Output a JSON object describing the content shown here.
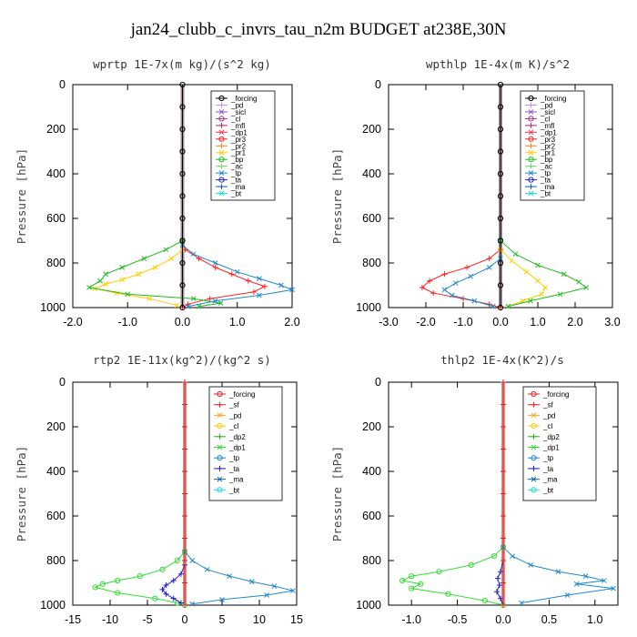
{
  "page_title": "jan24_clubb_c_invrs_tau_n2m  BUDGET at238E,30N",
  "chart_data": [
    {
      "type": "line",
      "title": "wprtp  1E-7x(m kg)/(s^2 kg)",
      "ylabel": "Pressure [hPa]",
      "xlim": [
        -2.0,
        2.0
      ],
      "ylim": [
        1000,
        0
      ],
      "xticks": [
        "-2.0",
        "-1.0",
        "0.0",
        "1.0",
        "2.0"
      ],
      "yticks": [
        "0",
        "200",
        "400",
        "600",
        "800",
        "1000"
      ],
      "grid": false,
      "legend_position": "top-right",
      "legend": [
        "_forcing",
        "_pd",
        "_sicl",
        "_cl",
        "_mfl",
        "_dp1",
        "_pr3",
        "_pr2",
        "_pr1",
        "_bp",
        "_ac",
        "_tp",
        "_ta",
        "_ma",
        "_bt"
      ],
      "series": [
        {
          "name": "_pr3",
          "color": "#ff2222",
          "marker": "plus",
          "x": [
            0,
            0.05,
            0.3,
            0.6,
            0.9,
            1.2,
            1.5,
            1.3,
            0.5,
            0.1,
            0
          ],
          "y": [
            700,
            740,
            780,
            820,
            850,
            880,
            905,
            930,
            960,
            985,
            1000
          ]
        },
        {
          "name": "_pr1",
          "color": "#ffcc00",
          "marker": "x",
          "x": [
            0,
            -0.2,
            -0.5,
            -0.8,
            -1.1,
            -1.4,
            -1.6,
            -1.2,
            -0.6,
            -0.1
          ],
          "y": [
            740,
            780,
            820,
            850,
            875,
            895,
            915,
            935,
            960,
            990
          ]
        },
        {
          "name": "_bp",
          "color": "#22bb22",
          "marker": "x",
          "x": [
            0,
            -0.3,
            -0.7,
            -1.1,
            -1.4,
            -1.5,
            -1.7,
            -1.0,
            0.2,
            0.7,
            0.3
          ],
          "y": [
            700,
            740,
            780,
            820,
            850,
            880,
            910,
            940,
            960,
            980,
            995
          ]
        },
        {
          "name": "_tp",
          "color": "#2288cc",
          "marker": "x",
          "x": [
            0,
            0.2,
            0.6,
            1.0,
            1.4,
            1.8,
            2.0,
            1.4,
            0.6,
            0.1
          ],
          "y": [
            720,
            760,
            800,
            840,
            870,
            900,
            920,
            945,
            970,
            995
          ]
        },
        {
          "name": "_forcing",
          "color": "#000000",
          "marker": "circle",
          "x": [
            0,
            0,
            0,
            0,
            0,
            0,
            0,
            0,
            0,
            0,
            0
          ],
          "y": [
            0,
            100,
            200,
            300,
            400,
            500,
            600,
            700,
            800,
            900,
            1000
          ]
        }
      ]
    },
    {
      "type": "line",
      "title": "wpthlp  1E-4x(m K)/s^2",
      "ylabel": "Pressure [hPa]",
      "xlim": [
        -3.0,
        3.0
      ],
      "ylim": [
        1000,
        0
      ],
      "xticks": [
        "-3.0",
        "-2.0",
        "-1.0",
        "0.0",
        "1.0",
        "2.0",
        "3.0"
      ],
      "yticks": [
        "0",
        "200",
        "400",
        "600",
        "800",
        "1000"
      ],
      "grid": false,
      "legend_position": "top-right",
      "legend": [
        "_forcing",
        "_pd",
        "_sicl",
        "_cl",
        "_mfl",
        "_dp1",
        "_pr3",
        "_pr2",
        "_pr1",
        "_bp",
        "_ac",
        "_tp",
        "_ta",
        "_ma",
        "_bt"
      ],
      "series": [
        {
          "name": "_pr3",
          "color": "#ff2222",
          "marker": "plus",
          "x": [
            0,
            -0.3,
            -0.9,
            -1.5,
            -1.9,
            -2.1,
            -1.8,
            -1.0,
            -0.3,
            0
          ],
          "y": [
            740,
            780,
            820,
            850,
            880,
            910,
            935,
            960,
            985,
            1000
          ]
        },
        {
          "name": "_pr1",
          "color": "#ffcc00",
          "marker": "x",
          "x": [
            0,
            0.3,
            0.7,
            1.0,
            1.2,
            1.1,
            0.6,
            0.2
          ],
          "y": [
            740,
            790,
            840,
            880,
            910,
            940,
            970,
            995
          ]
        },
        {
          "name": "_bp",
          "color": "#22bb22",
          "marker": "x",
          "x": [
            0,
            0.4,
            1.0,
            1.7,
            2.1,
            2.3,
            1.6,
            0.8,
            0.2
          ],
          "y": [
            700,
            760,
            810,
            850,
            885,
            910,
            940,
            970,
            995
          ]
        },
        {
          "name": "_tp",
          "color": "#2288cc",
          "marker": "x",
          "x": [
            0,
            -0.3,
            -0.8,
            -1.2,
            -1.5,
            -1.3,
            -0.7,
            -0.2
          ],
          "y": [
            780,
            820,
            860,
            890,
            920,
            945,
            970,
            995
          ]
        },
        {
          "name": "_forcing",
          "color": "#000000",
          "marker": "circle",
          "x": [
            0,
            0,
            0,
            0,
            0,
            0,
            0,
            0,
            0,
            0,
            0
          ],
          "y": [
            0,
            100,
            200,
            300,
            400,
            500,
            600,
            700,
            800,
            900,
            1000
          ]
        }
      ]
    },
    {
      "type": "line",
      "title": "rtp2  1E-11x(kg^2)/(kg^2 s)",
      "ylabel": "Pressure [hPa]",
      "xlim": [
        -15,
        15
      ],
      "ylim": [
        1000,
        0
      ],
      "xticks": [
        "-15",
        "-10",
        "-5",
        "0",
        "5",
        "10",
        "15"
      ],
      "yticks": [
        "0",
        "200",
        "400",
        "600",
        "800",
        "1000"
      ],
      "grid": false,
      "legend_position": "top-right",
      "legend": [
        "_forcing",
        "_sf",
        "_pd",
        "_cl",
        "_dp2",
        "_dp1",
        "_tp",
        "_ta",
        "_ma",
        "_bt"
      ],
      "series": [
        {
          "name": "_dp1",
          "color": "#33dd33",
          "marker": "circle",
          "x": [
            0,
            -1,
            -3,
            -6,
            -9,
            -11,
            -12,
            -9,
            -4,
            -1,
            0
          ],
          "y": [
            760,
            800,
            840,
            870,
            890,
            905,
            920,
            945,
            970,
            990,
            1000
          ]
        },
        {
          "name": "_tp",
          "color": "#2288cc",
          "marker": "x",
          "x": [
            0,
            1,
            3,
            6,
            9,
            12,
            14.5,
            11,
            5,
            1
          ],
          "y": [
            760,
            800,
            840,
            870,
            895,
            915,
            935,
            955,
            975,
            995
          ]
        },
        {
          "name": "_ta",
          "color": "#2222cc",
          "marker": "plus",
          "x": [
            0,
            -0.5,
            -1.5,
            -2.5,
            -3,
            -2.5,
            -1.5,
            -0.5
          ],
          "y": [
            820,
            860,
            890,
            910,
            930,
            950,
            970,
            990
          ]
        },
        {
          "name": "_forcing",
          "color": "#dd2222",
          "marker": "plus",
          "x": [
            0,
            0,
            0,
            0,
            0,
            0,
            0,
            0,
            0,
            0,
            0
          ],
          "y": [
            0,
            100,
            200,
            300,
            400,
            500,
            600,
            700,
            800,
            900,
            1000
          ]
        }
      ]
    },
    {
      "type": "line",
      "title": "thlp2  1E-4x(K^2)/s",
      "ylabel": "Pressure [hPa]",
      "xlim": [
        -1.25,
        1.25
      ],
      "ylim": [
        1000,
        0
      ],
      "xticks": [
        "-1.0",
        "-0.5",
        "0.0",
        "0.5",
        "1.0"
      ],
      "xtick_values": [
        -1.0,
        -0.5,
        0.0,
        0.5,
        1.0
      ],
      "yticks": [
        "0",
        "200",
        "400",
        "600",
        "800",
        "1000"
      ],
      "grid": false,
      "legend_position": "top-right",
      "legend": [
        "_forcing",
        "_sf",
        "_pd",
        "_cl",
        "_dp2",
        "_dp1",
        "_tp",
        "_ta",
        "_ma",
        "_bt"
      ],
      "series": [
        {
          "name": "_dp1",
          "color": "#33dd33",
          "marker": "circle",
          "x": [
            0,
            -0.1,
            -0.35,
            -0.7,
            -1.0,
            -1.1,
            -0.9,
            -1.0,
            -0.6,
            -0.2,
            0
          ],
          "y": [
            740,
            780,
            820,
            850,
            870,
            890,
            905,
            925,
            950,
            980,
            1000
          ]
        },
        {
          "name": "_tp",
          "color": "#2288cc",
          "marker": "x",
          "x": [
            0,
            0.1,
            0.3,
            0.6,
            0.9,
            1.1,
            0.8,
            1.2,
            0.7,
            0.2
          ],
          "y": [
            740,
            780,
            820,
            850,
            870,
            890,
            905,
            925,
            955,
            990
          ]
        },
        {
          "name": "_ta",
          "color": "#2222cc",
          "marker": "plus",
          "x": [
            0,
            -0.03,
            -0.06,
            -0.04,
            -0.07,
            -0.03,
            0
          ],
          "y": [
            800,
            850,
            880,
            910,
            940,
            970,
            1000
          ]
        },
        {
          "name": "_forcing",
          "color": "#dd2222",
          "marker": "plus",
          "x": [
            0,
            0,
            0,
            0,
            0,
            0,
            0,
            0,
            0,
            0,
            0
          ],
          "y": [
            0,
            100,
            200,
            300,
            400,
            500,
            600,
            700,
            800,
            900,
            1000
          ]
        }
      ]
    }
  ],
  "legend_colors": {
    "_forcing": "#000000",
    "_pd": "#cc88ff",
    "_sicl": "#8855cc",
    "_cl": "#aa3388",
    "_mfl": "#cc2266",
    "_dp1": "#ff3344",
    "_pr3": "#ff2222",
    "_pr2": "#ff8822",
    "_pr1": "#ffcc00",
    "_bp": "#22bb22",
    "_ac": "#66dd66",
    "_tp": "#2288cc",
    "_ta": "#2222cc",
    "_ma": "#1166aa",
    "_bt": "#22dddd",
    "_sf": "#ff2222",
    "_dp2": "#22bb22"
  },
  "legend_colors_bottom": {
    "_forcing": "#dd2222",
    "_sf": "#ff2222",
    "_pd": "#ffaa22",
    "_cl": "#ffcc00",
    "_dp2": "#22bb22",
    "_dp1": "#33dd33",
    "_tp": "#2288cc",
    "_ta": "#2222cc",
    "_ma": "#1166aa",
    "_bt": "#22dddd"
  }
}
